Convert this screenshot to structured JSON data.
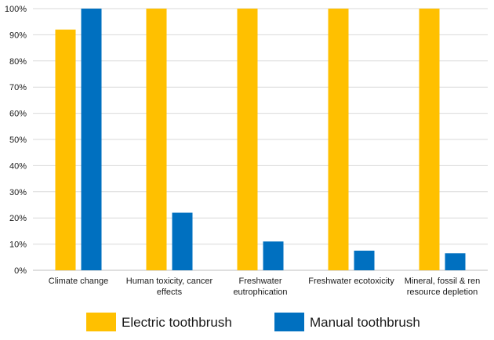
{
  "chart_data": {
    "type": "bar",
    "categories": [
      [
        "Climate change"
      ],
      [
        "Human toxicity, cancer",
        "effects"
      ],
      [
        "Freshwater",
        "eutrophication"
      ],
      [
        "Freshwater ecotoxicity"
      ],
      [
        "Mineral, fossil & ren",
        "resource depletion"
      ]
    ],
    "series": [
      {
        "name": "Electric toothbrush",
        "color": "#FFC000",
        "values": [
          92,
          100,
          100,
          100,
          100
        ]
      },
      {
        "name": "Manual toothbrush",
        "color": "#0070C0",
        "values": [
          100,
          22,
          11,
          7.5,
          6.5
        ]
      }
    ],
    "ylim": [
      0,
      100
    ],
    "yticks": [
      0,
      10,
      20,
      30,
      40,
      50,
      60,
      70,
      80,
      90,
      100
    ],
    "ytick_suffix": "%",
    "title": "",
    "xlabel": "",
    "ylabel": "",
    "grid": true,
    "legend_position": "bottom"
  }
}
